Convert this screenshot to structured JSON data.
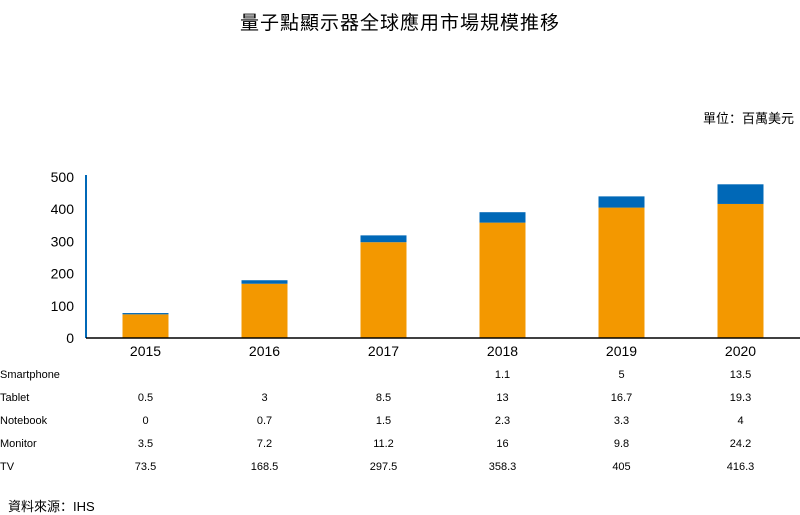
{
  "title": "量子點顯示器全球應用市場規模推移",
  "unit": "單位：百萬美元",
  "source": "資料來源：IHS",
  "chart_data": {
    "type": "bar",
    "stacked": true,
    "categories": [
      "2015",
      "2016",
      "2017",
      "2018",
      "2019",
      "2020"
    ],
    "ylim": [
      0,
      500
    ],
    "yticks": [
      0,
      100,
      200,
      300,
      400,
      500
    ],
    "colors": {
      "tv": "#f39800",
      "others": "#0068b7"
    },
    "table": [
      {
        "label": "Smartphone",
        "values": [
          "",
          "",
          "",
          "1.1",
          "5",
          "13.5"
        ]
      },
      {
        "label": "Tablet",
        "values": [
          "0.5",
          "3",
          "8.5",
          "13",
          "16.7",
          "19.3"
        ]
      },
      {
        "label": "Notebook",
        "values": [
          "0",
          "0.7",
          "1.5",
          "2.3",
          "3.3",
          "4"
        ]
      },
      {
        "label": "Monitor",
        "values": [
          "3.5",
          "7.2",
          "11.2",
          "16",
          "9.8",
          "24.2"
        ]
      },
      {
        "label": "TV",
        "values": [
          "73.5",
          "168.5",
          "297.5",
          "358.3",
          "405",
          "416.3"
        ]
      }
    ],
    "series": [
      {
        "name": "TV",
        "values": [
          73.5,
          168.5,
          297.5,
          358.3,
          405,
          416.3
        ]
      },
      {
        "name": "Monitor",
        "values": [
          3.5,
          7.2,
          11.2,
          16,
          9.8,
          24.2
        ]
      },
      {
        "name": "Notebook",
        "values": [
          0,
          0.7,
          1.5,
          2.3,
          3.3,
          4
        ]
      },
      {
        "name": "Tablet",
        "values": [
          0.5,
          3,
          8.5,
          13,
          16.7,
          19.3
        ]
      },
      {
        "name": "Smartphone",
        "values": [
          0,
          0,
          0,
          1.1,
          5,
          13.5
        ]
      }
    ]
  }
}
